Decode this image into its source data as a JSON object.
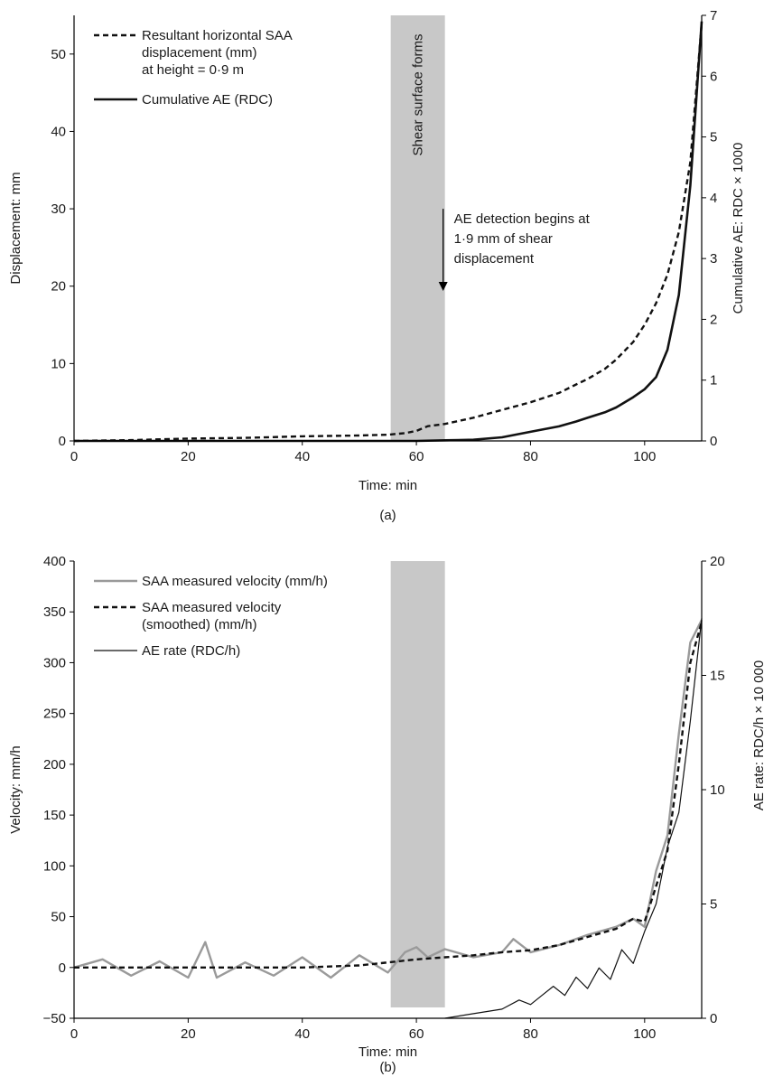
{
  "chart_data": [
    {
      "panel_label": "(a)",
      "type": "line",
      "xlabel": "Time: min",
      "ylabel": "Displacement: mm",
      "y2label": "Cumulative AE: RDC × 1000",
      "xlim": [
        0,
        110
      ],
      "ylim": [
        0,
        55
      ],
      "y2lim": [
        0,
        7
      ],
      "xticks": [
        0,
        20,
        40,
        60,
        80,
        100
      ],
      "yticks": [
        0,
        10,
        20,
        30,
        40,
        50
      ],
      "y2ticks": [
        0,
        1,
        2,
        3,
        4,
        5,
        6,
        7
      ],
      "grid": false,
      "legend_position": "top-left",
      "shaded_region": {
        "x": [
          55.5,
          65
        ],
        "label": "Shear surface forms"
      },
      "annotation": {
        "lines": [
          "AE detection begins at",
          "1·9 mm of shear",
          "displacement"
        ],
        "arrow_x": 65,
        "arrow_y_from": 30,
        "arrow_y_to": 19.5
      },
      "series": [
        {
          "name": "Resultant horizontal SAA displacement (mm) at height = 0·9 m",
          "legend_lines": [
            "Resultant horizontal SAA",
            "displacement (mm)",
            "at height = 0·9 m"
          ],
          "axis": "left",
          "style": "dashed",
          "color": "#111111",
          "x": [
            0,
            10,
            20,
            30,
            40,
            50,
            55,
            58,
            60,
            62,
            65,
            70,
            75,
            80,
            85,
            88,
            90,
            93,
            95,
            98,
            100,
            102,
            104,
            106,
            108,
            110
          ],
          "y": [
            0,
            0.1,
            0.3,
            0.4,
            0.6,
            0.7,
            0.8,
            1.0,
            1.3,
            1.9,
            2.2,
            3.0,
            4.0,
            5.0,
            6.2,
            7.3,
            8.0,
            9.3,
            10.5,
            12.8,
            15.0,
            17.8,
            21.5,
            27.0,
            36.0,
            54.0
          ]
        },
        {
          "name": "Cumulative AE (RDC)",
          "legend_lines": [
            "Cumulative AE (RDC)"
          ],
          "axis": "right",
          "style": "solid",
          "color": "#111111",
          "x": [
            0,
            60,
            65,
            70,
            75,
            80,
            85,
            88,
            90,
            93,
            95,
            98,
            100,
            102,
            104,
            106,
            108,
            110
          ],
          "y": [
            0,
            0,
            0.01,
            0.02,
            0.06,
            0.15,
            0.24,
            0.32,
            0.38,
            0.47,
            0.55,
            0.72,
            0.85,
            1.05,
            1.5,
            2.4,
            4.2,
            6.9
          ]
        }
      ]
    },
    {
      "panel_label": "(b)",
      "type": "line",
      "xlabel": "Time: min",
      "ylabel": "Velocity: mm/h",
      "y2label": "AE rate: RDC/h × 10 000",
      "xlim": [
        0,
        110
      ],
      "ylim": [
        -50,
        400
      ],
      "y2lim": [
        0,
        20
      ],
      "xticks": [
        0,
        20,
        40,
        60,
        80,
        100
      ],
      "yticks": [
        -50,
        0,
        50,
        100,
        150,
        200,
        250,
        300,
        350,
        400
      ],
      "y2ticks": [
        0,
        5,
        10,
        15,
        20
      ],
      "grid": false,
      "legend_position": "top-left",
      "shaded_region": {
        "x": [
          55.5,
          65
        ]
      },
      "series": [
        {
          "name": "SAA measured velocity (mm/h)",
          "legend_lines": [
            "SAA measured velocity (mm/h)"
          ],
          "axis": "left",
          "style": "solid",
          "color": "#9a9a9a",
          "x": [
            0,
            5,
            10,
            15,
            20,
            23,
            25,
            30,
            35,
            40,
            45,
            50,
            55,
            58,
            60,
            62,
            65,
            70,
            75,
            77,
            80,
            85,
            90,
            95,
            98,
            100,
            102,
            104,
            106,
            108,
            110
          ],
          "y": [
            0,
            8,
            -8,
            6,
            -10,
            25,
            -10,
            5,
            -8,
            10,
            -10,
            12,
            -5,
            15,
            20,
            10,
            18,
            10,
            15,
            28,
            15,
            22,
            32,
            40,
            48,
            40,
            95,
            130,
            230,
            320,
            342
          ]
        },
        {
          "name": "SAA measured velocity (smoothed) (mm/h)",
          "legend_lines": [
            "SAA measured velocity",
            "(smoothed) (mm/h)"
          ],
          "axis": "left",
          "style": "dashed",
          "color": "#111111",
          "x": [
            0,
            10,
            20,
            30,
            40,
            50,
            55,
            60,
            65,
            70,
            75,
            80,
            85,
            90,
            95,
            98,
            100,
            102,
            104,
            106,
            108,
            110
          ],
          "y": [
            0,
            0,
            0,
            0,
            0,
            2,
            5,
            8,
            10,
            12,
            15,
            17,
            22,
            30,
            38,
            48,
            45,
            80,
            115,
            200,
            300,
            340
          ]
        },
        {
          "name": "AE rate (RDC/h)",
          "legend_lines": [
            "AE rate (RDC/h)"
          ],
          "axis": "right",
          "style": "solid",
          "color": "#111111",
          "x": [
            65,
            70,
            75,
            78,
            80,
            82,
            84,
            86,
            88,
            90,
            92,
            94,
            96,
            98,
            100,
            102,
            104,
            106,
            108,
            110
          ],
          "y": [
            0,
            0.2,
            0.4,
            0.8,
            0.6,
            1.0,
            1.4,
            1.0,
            1.8,
            1.3,
            2.2,
            1.7,
            3.0,
            2.4,
            3.8,
            5.0,
            7.5,
            9.0,
            13.0,
            17.5
          ]
        }
      ]
    }
  ]
}
